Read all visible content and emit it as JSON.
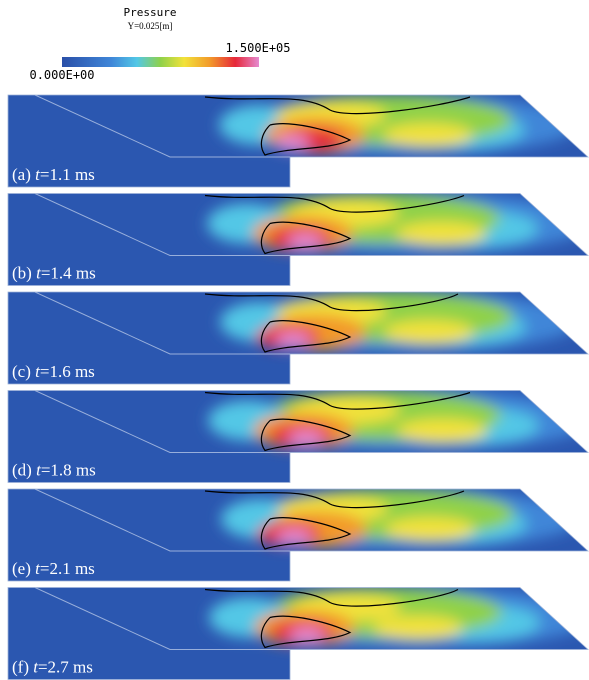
{
  "colorbar": {
    "title": "Pressure",
    "subtitle": "Y=0.025[m]",
    "max_label": "1.500E+05",
    "min_label": "0.000E+00"
  },
  "panels": [
    {
      "letter": "(a)",
      "variable": "t",
      "rest": "=1.1 ms"
    },
    {
      "letter": "(b)",
      "variable": "t",
      "rest": "=1.4 ms"
    },
    {
      "letter": "(c)",
      "variable": "t",
      "rest": "=1.6 ms"
    },
    {
      "letter": "(d)",
      "variable": "t",
      "rest": "=1.8 ms"
    },
    {
      "letter": "(e)",
      "variable": "t",
      "rest": "=2.1 ms"
    },
    {
      "letter": "(f)",
      "variable": "t",
      "rest": "=2.7 ms"
    }
  ]
}
